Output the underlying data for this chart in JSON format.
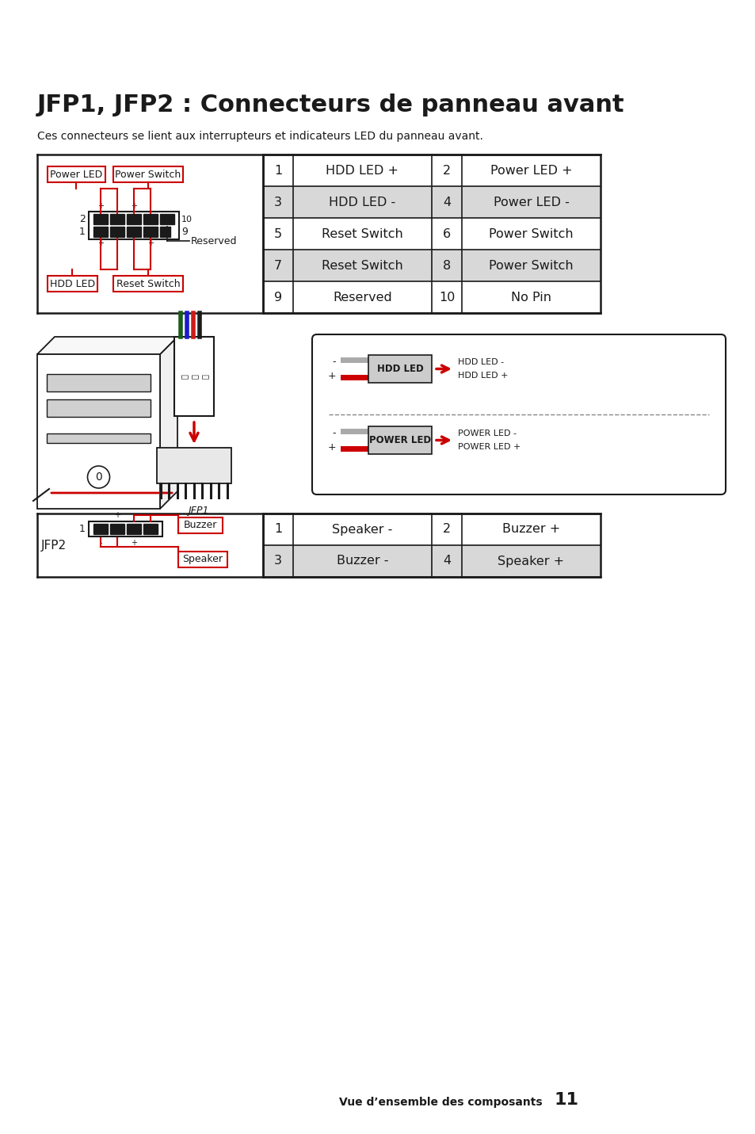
{
  "title": "JFP1, JFP2 : Connecteurs de panneau avant",
  "subtitle": "Ces connecteurs se lient aux interrupteurs et indicateurs LED du panneau avant.",
  "bg_color": "#ffffff",
  "table1_rows": [
    [
      "1",
      "HDD LED +",
      "2",
      "Power LED +"
    ],
    [
      "3",
      "HDD LED -",
      "4",
      "Power LED -"
    ],
    [
      "5",
      "Reset Switch",
      "6",
      "Power Switch"
    ],
    [
      "7",
      "Reset Switch",
      "8",
      "Power Switch"
    ],
    [
      "9",
      "Reserved",
      "10",
      "No Pin"
    ]
  ],
  "table1_row_colors": [
    "#ffffff",
    "#d8d8d8",
    "#ffffff",
    "#d8d8d8",
    "#ffffff"
  ],
  "table2_rows": [
    [
      "1",
      "Speaker -",
      "2",
      "Buzzer +"
    ],
    [
      "3",
      "Buzzer -",
      "4",
      "Speaker +"
    ]
  ],
  "table2_row_colors": [
    "#ffffff",
    "#d8d8d8"
  ],
  "footer_text": "Vue d’ensemble des composants",
  "footer_page": "11",
  "red_color": "#cc0000",
  "black_color": "#1a1a1a",
  "gray_color": "#808080"
}
